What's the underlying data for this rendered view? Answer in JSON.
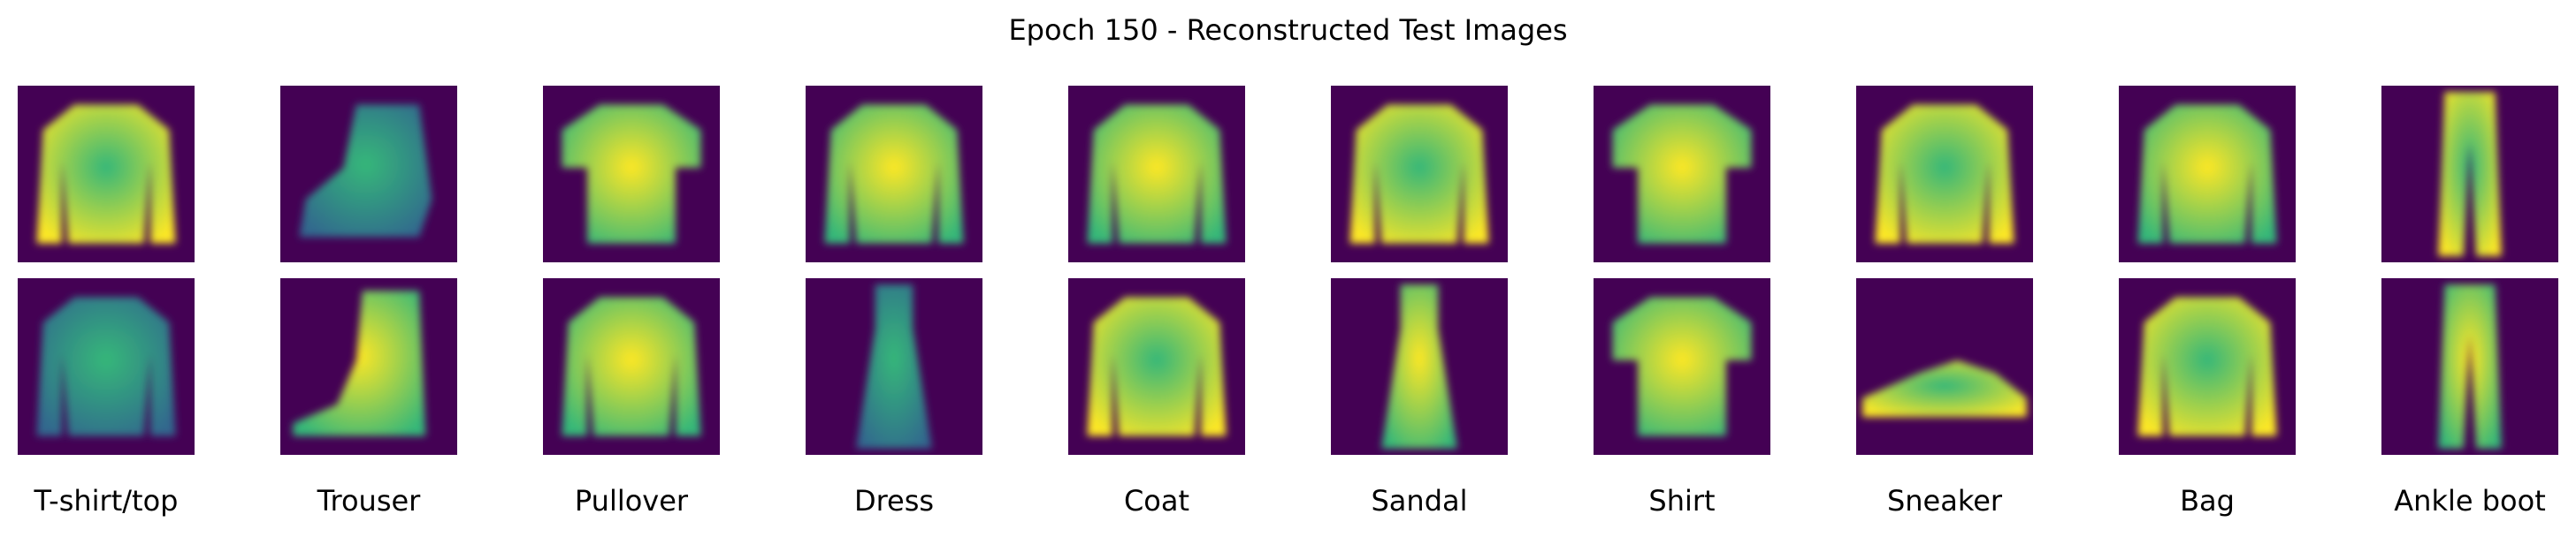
{
  "figure": {
    "title": "Epoch 150 - Reconstructed Test Images",
    "colormap": "viridis",
    "colors": {
      "background": "#440154",
      "low": "#31688e",
      "mid": "#35b779",
      "high": "#fde725"
    }
  },
  "labels": [
    "T-shirt/top",
    "Trouser",
    "Pullover",
    "Dress",
    "Coat",
    "Sandal",
    "Shirt",
    "Sneaker",
    "Bag",
    "Ankle boot"
  ],
  "rows": [
    {
      "name": "top-row",
      "images": [
        {
          "depicts": "long-sleeve-top",
          "tone": "mid"
        },
        {
          "depicts": "blurred-boot",
          "tone": "low"
        },
        {
          "depicts": "t-shirt",
          "tone": "high"
        },
        {
          "depicts": "long-sleeve-top",
          "tone": "high"
        },
        {
          "depicts": "long-sleeve-top",
          "tone": "high"
        },
        {
          "depicts": "long-sleeve-top",
          "tone": "mid"
        },
        {
          "depicts": "t-shirt",
          "tone": "high"
        },
        {
          "depicts": "long-sleeve-top",
          "tone": "mid"
        },
        {
          "depicts": "long-sleeve-top",
          "tone": "high"
        },
        {
          "depicts": "trousers",
          "tone": "mid"
        }
      ]
    },
    {
      "name": "bottom-row",
      "images": [
        {
          "depicts": "long-sleeve-top",
          "tone": "low"
        },
        {
          "depicts": "ankle-boot",
          "tone": "high"
        },
        {
          "depicts": "long-sleeve-top",
          "tone": "high"
        },
        {
          "depicts": "dress",
          "tone": "low"
        },
        {
          "depicts": "long-sleeve-top",
          "tone": "mid"
        },
        {
          "depicts": "dress",
          "tone": "high"
        },
        {
          "depicts": "t-shirt",
          "tone": "high"
        },
        {
          "depicts": "sneaker",
          "tone": "mid"
        },
        {
          "depicts": "long-sleeve-top",
          "tone": "mid"
        },
        {
          "depicts": "trousers",
          "tone": "high"
        }
      ]
    }
  ]
}
